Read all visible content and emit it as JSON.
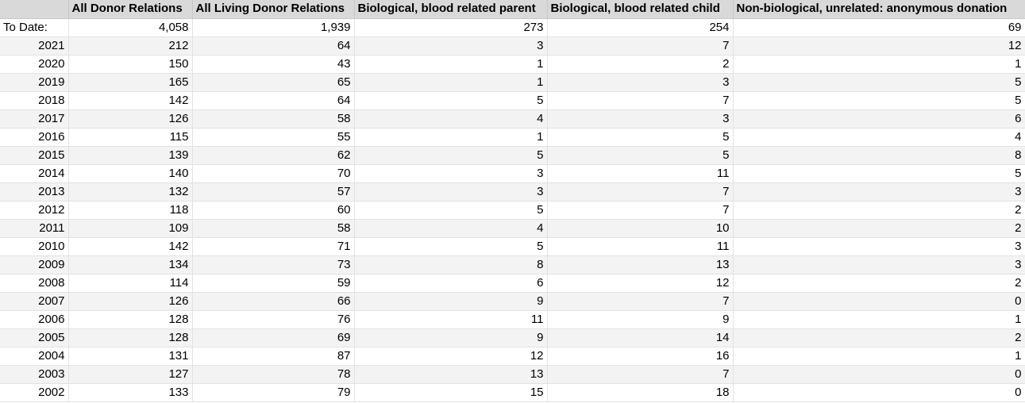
{
  "headers": [
    "",
    "All Donor Relations",
    "All Living Donor Relations",
    "Biological, blood related parent",
    "Biological, blood related child",
    "Non-biological, unrelated: anonymous donation"
  ],
  "rows": [
    {
      "label": "To Date:",
      "values": [
        "4,058",
        "1,939",
        "273",
        "254",
        "69"
      ]
    },
    {
      "label": "2021",
      "values": [
        "212",
        "64",
        "3",
        "7",
        "12"
      ]
    },
    {
      "label": "2020",
      "values": [
        "150",
        "43",
        "1",
        "2",
        "1"
      ]
    },
    {
      "label": "2019",
      "values": [
        "165",
        "65",
        "1",
        "3",
        "5"
      ]
    },
    {
      "label": "2018",
      "values": [
        "142",
        "64",
        "5",
        "7",
        "5"
      ]
    },
    {
      "label": "2017",
      "values": [
        "126",
        "58",
        "4",
        "3",
        "6"
      ]
    },
    {
      "label": "2016",
      "values": [
        "115",
        "55",
        "1",
        "5",
        "4"
      ]
    },
    {
      "label": "2015",
      "values": [
        "139",
        "62",
        "5",
        "5",
        "8"
      ]
    },
    {
      "label": "2014",
      "values": [
        "140",
        "70",
        "3",
        "11",
        "5"
      ]
    },
    {
      "label": "2013",
      "values": [
        "132",
        "57",
        "3",
        "7",
        "3"
      ]
    },
    {
      "label": "2012",
      "values": [
        "118",
        "60",
        "5",
        "7",
        "2"
      ]
    },
    {
      "label": "2011",
      "values": [
        "109",
        "58",
        "4",
        "10",
        "2"
      ]
    },
    {
      "label": "2010",
      "values": [
        "142",
        "71",
        "5",
        "11",
        "3"
      ]
    },
    {
      "label": "2009",
      "values": [
        "134",
        "73",
        "8",
        "13",
        "3"
      ]
    },
    {
      "label": "2008",
      "values": [
        "114",
        "59",
        "6",
        "12",
        "2"
      ]
    },
    {
      "label": "2007",
      "values": [
        "126",
        "66",
        "9",
        "7",
        "0"
      ]
    },
    {
      "label": "2006",
      "values": [
        "128",
        "76",
        "11",
        "9",
        "1"
      ]
    },
    {
      "label": "2005",
      "values": [
        "128",
        "69",
        "9",
        "14",
        "2"
      ]
    },
    {
      "label": "2004",
      "values": [
        "131",
        "87",
        "12",
        "16",
        "1"
      ]
    },
    {
      "label": "2003",
      "values": [
        "127",
        "78",
        "13",
        "7",
        "0"
      ]
    },
    {
      "label": "2002",
      "values": [
        "133",
        "79",
        "15",
        "18",
        "0"
      ]
    }
  ],
  "colors": {
    "header_bg": "#d9d9d9",
    "band_bg": "#f3f3f3",
    "grid_line": "#e2e2e2"
  }
}
